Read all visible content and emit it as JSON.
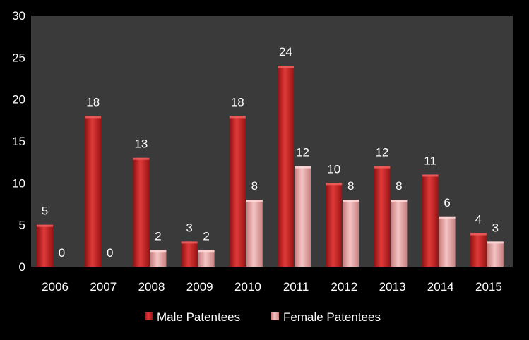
{
  "chart_data": {
    "type": "bar",
    "categories": [
      "2006",
      "2007",
      "2008",
      "2009",
      "2010",
      "2011",
      "2012",
      "2013",
      "2014",
      "2015"
    ],
    "series": [
      {
        "name": "Male Patentees",
        "values": [
          5,
          18,
          13,
          3,
          18,
          24,
          10,
          12,
          11,
          4
        ],
        "color": "#d42a2a"
      },
      {
        "name": "Female Patentees",
        "values": [
          0,
          0,
          2,
          2,
          8,
          12,
          8,
          8,
          6,
          3
        ],
        "color": "#eba3a3"
      }
    ],
    "title": "",
    "xlabel": "",
    "ylabel": "",
    "ylim": [
      0,
      30
    ],
    "yticks": [
      0,
      5,
      10,
      15,
      20,
      25,
      30
    ],
    "grid": false,
    "legend": "bottom",
    "plot_background": "#3a3a3a",
    "page_background": "#000000"
  }
}
